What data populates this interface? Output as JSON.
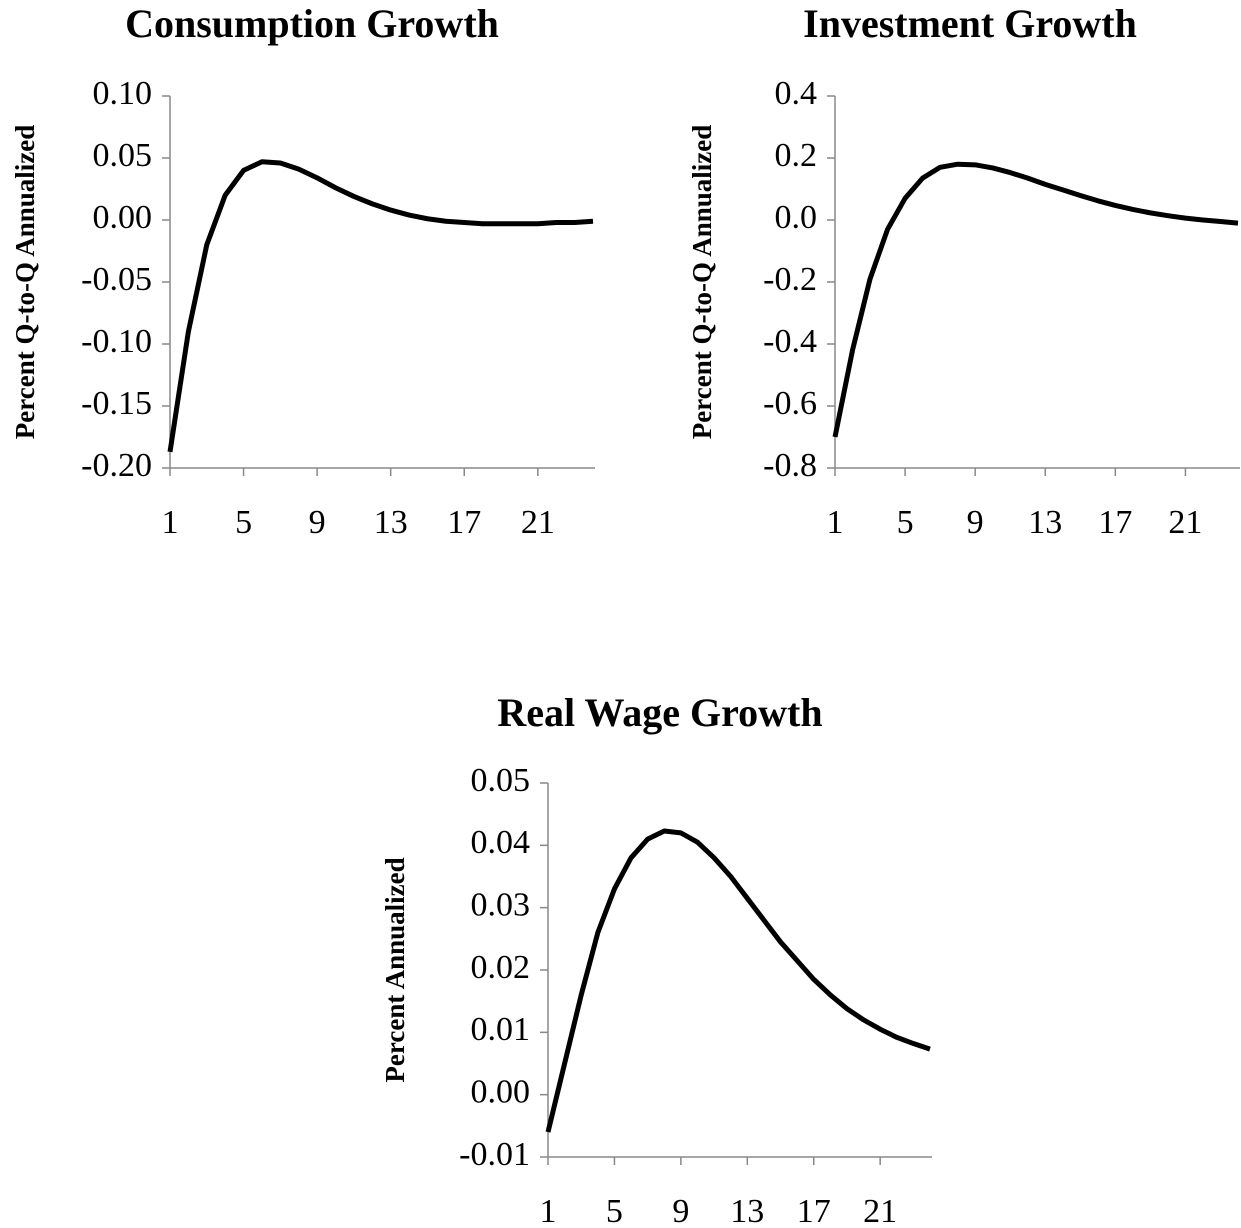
{
  "chart_data": [
    {
      "type": "line",
      "title": "Consumption Growth",
      "y_label": "Percent Q-to-Q Annualized",
      "x": [
        1,
        2,
        3,
        4,
        5,
        6,
        7,
        8,
        9,
        10,
        11,
        12,
        13,
        14,
        15,
        16,
        17,
        18,
        19,
        20,
        21,
        22,
        23,
        24
      ],
      "values": [
        -0.187,
        -0.09,
        -0.02,
        0.02,
        0.04,
        0.047,
        0.046,
        0.041,
        0.034,
        0.026,
        0.019,
        0.013,
        0.008,
        0.004,
        0.001,
        -0.001,
        -0.002,
        -0.003,
        -0.003,
        -0.003,
        -0.003,
        -0.002,
        -0.002,
        -0.001
      ],
      "color": "#000000",
      "xlim": [
        1,
        24
      ],
      "xticks": [
        1,
        5,
        9,
        13,
        17,
        21
      ],
      "ylim": [
        -0.2,
        0.1
      ],
      "yticks": [
        {
          "value": -0.2,
          "label": "-0.20"
        },
        -0.15,
        {
          "value": -0.1,
          "label": "-0.10"
        },
        -0.05,
        {
          "value": 0,
          "label": "0.00"
        },
        0.05,
        {
          "value": 0.1,
          "label": "0.10"
        }
      ]
    },
    {
      "type": "line",
      "title": "Investment Growth",
      "y_label": "Percent Q-to-Q Annualized",
      "x": [
        1,
        2,
        3,
        4,
        5,
        6,
        7,
        8,
        9,
        10,
        11,
        12,
        13,
        14,
        15,
        16,
        17,
        18,
        19,
        20,
        21,
        22,
        23,
        24
      ],
      "values": [
        -0.7,
        -0.42,
        -0.19,
        -0.03,
        0.07,
        0.135,
        0.17,
        0.18,
        0.178,
        0.168,
        0.153,
        0.135,
        0.115,
        0.097,
        0.079,
        0.062,
        0.047,
        0.034,
        0.023,
        0.014,
        0.006,
        0.0,
        -0.005,
        -0.01
      ],
      "color": "#000000",
      "xlim": [
        1,
        24
      ],
      "xticks": [
        1,
        5,
        9,
        13,
        17,
        21
      ],
      "ylim": [
        -0.8,
        0.4
      ],
      "yticks": [
        -0.8,
        -0.6,
        -0.4,
        -0.2,
        {
          "value": 0,
          "label": "0.0"
        },
        0.2,
        0.4
      ]
    },
    {
      "type": "line",
      "title": "Real Wage Growth",
      "y_label": "Percent Annualized",
      "x": [
        1,
        2,
        3,
        4,
        5,
        6,
        7,
        8,
        9,
        10,
        11,
        12,
        13,
        14,
        15,
        16,
        17,
        18,
        19,
        20,
        21,
        22,
        23,
        24
      ],
      "values": [
        -0.006,
        0.005,
        0.016,
        0.026,
        0.033,
        0.038,
        0.041,
        0.0423,
        0.042,
        0.0405,
        0.038,
        0.035,
        0.0315,
        0.028,
        0.0245,
        0.0215,
        0.0185,
        0.016,
        0.0138,
        0.012,
        0.0105,
        0.0092,
        0.0082,
        0.0073
      ],
      "color": "#000000",
      "xlim": [
        1,
        24
      ],
      "xticks": [
        1,
        5,
        9,
        13,
        17,
        21
      ],
      "ylim": [
        -0.01,
        0.05
      ],
      "yticks": [
        -0.01,
        {
          "value": 0,
          "label": "0.00"
        },
        0.01,
        0.02,
        0.03,
        0.04,
        0.05
      ]
    }
  ]
}
